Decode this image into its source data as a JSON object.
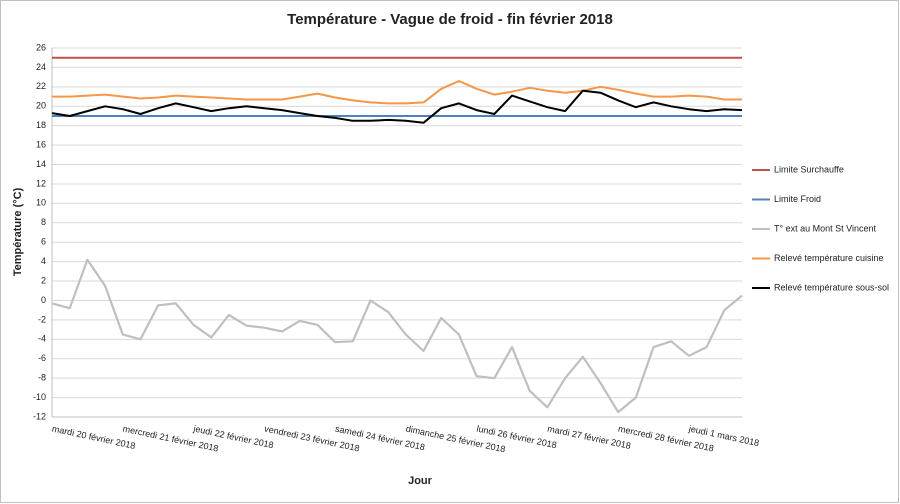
{
  "chart_data": {
    "type": "line",
    "title": "Température - Vague de froid - fin février 2018",
    "x_label": "Jour",
    "y_label": "Température (°C)",
    "categories": [
      "mardi 20 février 2018",
      null,
      null,
      null,
      "mercredi 21 février 2018",
      null,
      null,
      null,
      "jeudi 22 février 2018",
      null,
      null,
      null,
      "vendredi 23 février 2018",
      null,
      null,
      null,
      "samedi 24 février 2018",
      null,
      null,
      null,
      "dimanche 25 février 2018",
      null,
      null,
      null,
      "lundi 26 février 2018",
      null,
      null,
      null,
      "mardi 27 février 2018",
      null,
      null,
      null,
      "mercredi 28 février 2018",
      null,
      null,
      null,
      "jeudi 1 mars 2018",
      null,
      null,
      null
    ],
    "ylim": [
      -12,
      26
    ],
    "yticks": [
      -12,
      -10,
      -8,
      -6,
      -4,
      -2,
      0,
      2,
      4,
      6,
      8,
      10,
      12,
      14,
      16,
      18,
      20,
      22,
      24,
      26
    ],
    "grid": true,
    "legend": "right",
    "series": [
      {
        "name": "Limite Surchauffe",
        "color": "#c0504d",
        "values": [
          25,
          25,
          25,
          25,
          25,
          25,
          25,
          25,
          25,
          25,
          25,
          25,
          25,
          25,
          25,
          25,
          25,
          25,
          25,
          25,
          25,
          25,
          25,
          25,
          25,
          25,
          25,
          25,
          25,
          25,
          25,
          25,
          25,
          25,
          25,
          25,
          25,
          25,
          25,
          25
        ]
      },
      {
        "name": "Limite Froid",
        "color": "#4f81bd",
        "values": [
          19,
          19,
          19,
          19,
          19,
          19,
          19,
          19,
          19,
          19,
          19,
          19,
          19,
          19,
          19,
          19,
          19,
          19,
          19,
          19,
          19,
          19,
          19,
          19,
          19,
          19,
          19,
          19,
          19,
          19,
          19,
          19,
          19,
          19,
          19,
          19,
          19,
          19,
          19,
          19
        ]
      },
      {
        "name": "T° ext au Mont St Vincent",
        "color": "#bfbfbf",
        "values": [
          -0.3,
          -0.8,
          4.2,
          1.5,
          -3.5,
          -4,
          -0.5,
          -0.3,
          -2.5,
          -3.8,
          -1.5,
          -2.6,
          -2.8,
          -3.2,
          -2.1,
          -2.5,
          -4.3,
          -4.2,
          0,
          -1.2,
          -3.5,
          -5.2,
          -1.8,
          -3.5,
          -7.8,
          -8,
          -4.8,
          -9.3,
          -11,
          -8,
          -5.8,
          -8.5,
          -11.5,
          -10,
          -4.8,
          -4.2,
          -5.7,
          -4.8,
          -1,
          0.5
        ]
      },
      {
        "name": "Relevé température cuisine",
        "color": "#f79646",
        "values": [
          21,
          21,
          21.1,
          21.2,
          21,
          20.8,
          20.9,
          21.1,
          21,
          20.9,
          20.8,
          20.7,
          20.7,
          20.7,
          21,
          21.3,
          20.9,
          20.6,
          20.4,
          20.3,
          20.3,
          20.4,
          21.8,
          22.6,
          21.8,
          21.2,
          21.5,
          21.9,
          21.6,
          21.4,
          21.6,
          22,
          21.7,
          21.3,
          21,
          21,
          21.1,
          21,
          20.7,
          20.7
        ]
      },
      {
        "name": "Relevé température sous-sol",
        "color": "#000000",
        "values": [
          19.3,
          19,
          19.5,
          20,
          19.7,
          19.2,
          19.8,
          20.3,
          19.9,
          19.5,
          19.8,
          20,
          19.8,
          19.6,
          19.3,
          19,
          18.8,
          18.5,
          18.5,
          18.6,
          18.5,
          18.3,
          19.8,
          20.3,
          19.6,
          19.2,
          21.1,
          20.5,
          19.9,
          19.5,
          21.6,
          21.4,
          20.6,
          19.9,
          20.4,
          20,
          19.7,
          19.5,
          19.7,
          19.6
        ]
      }
    ]
  }
}
